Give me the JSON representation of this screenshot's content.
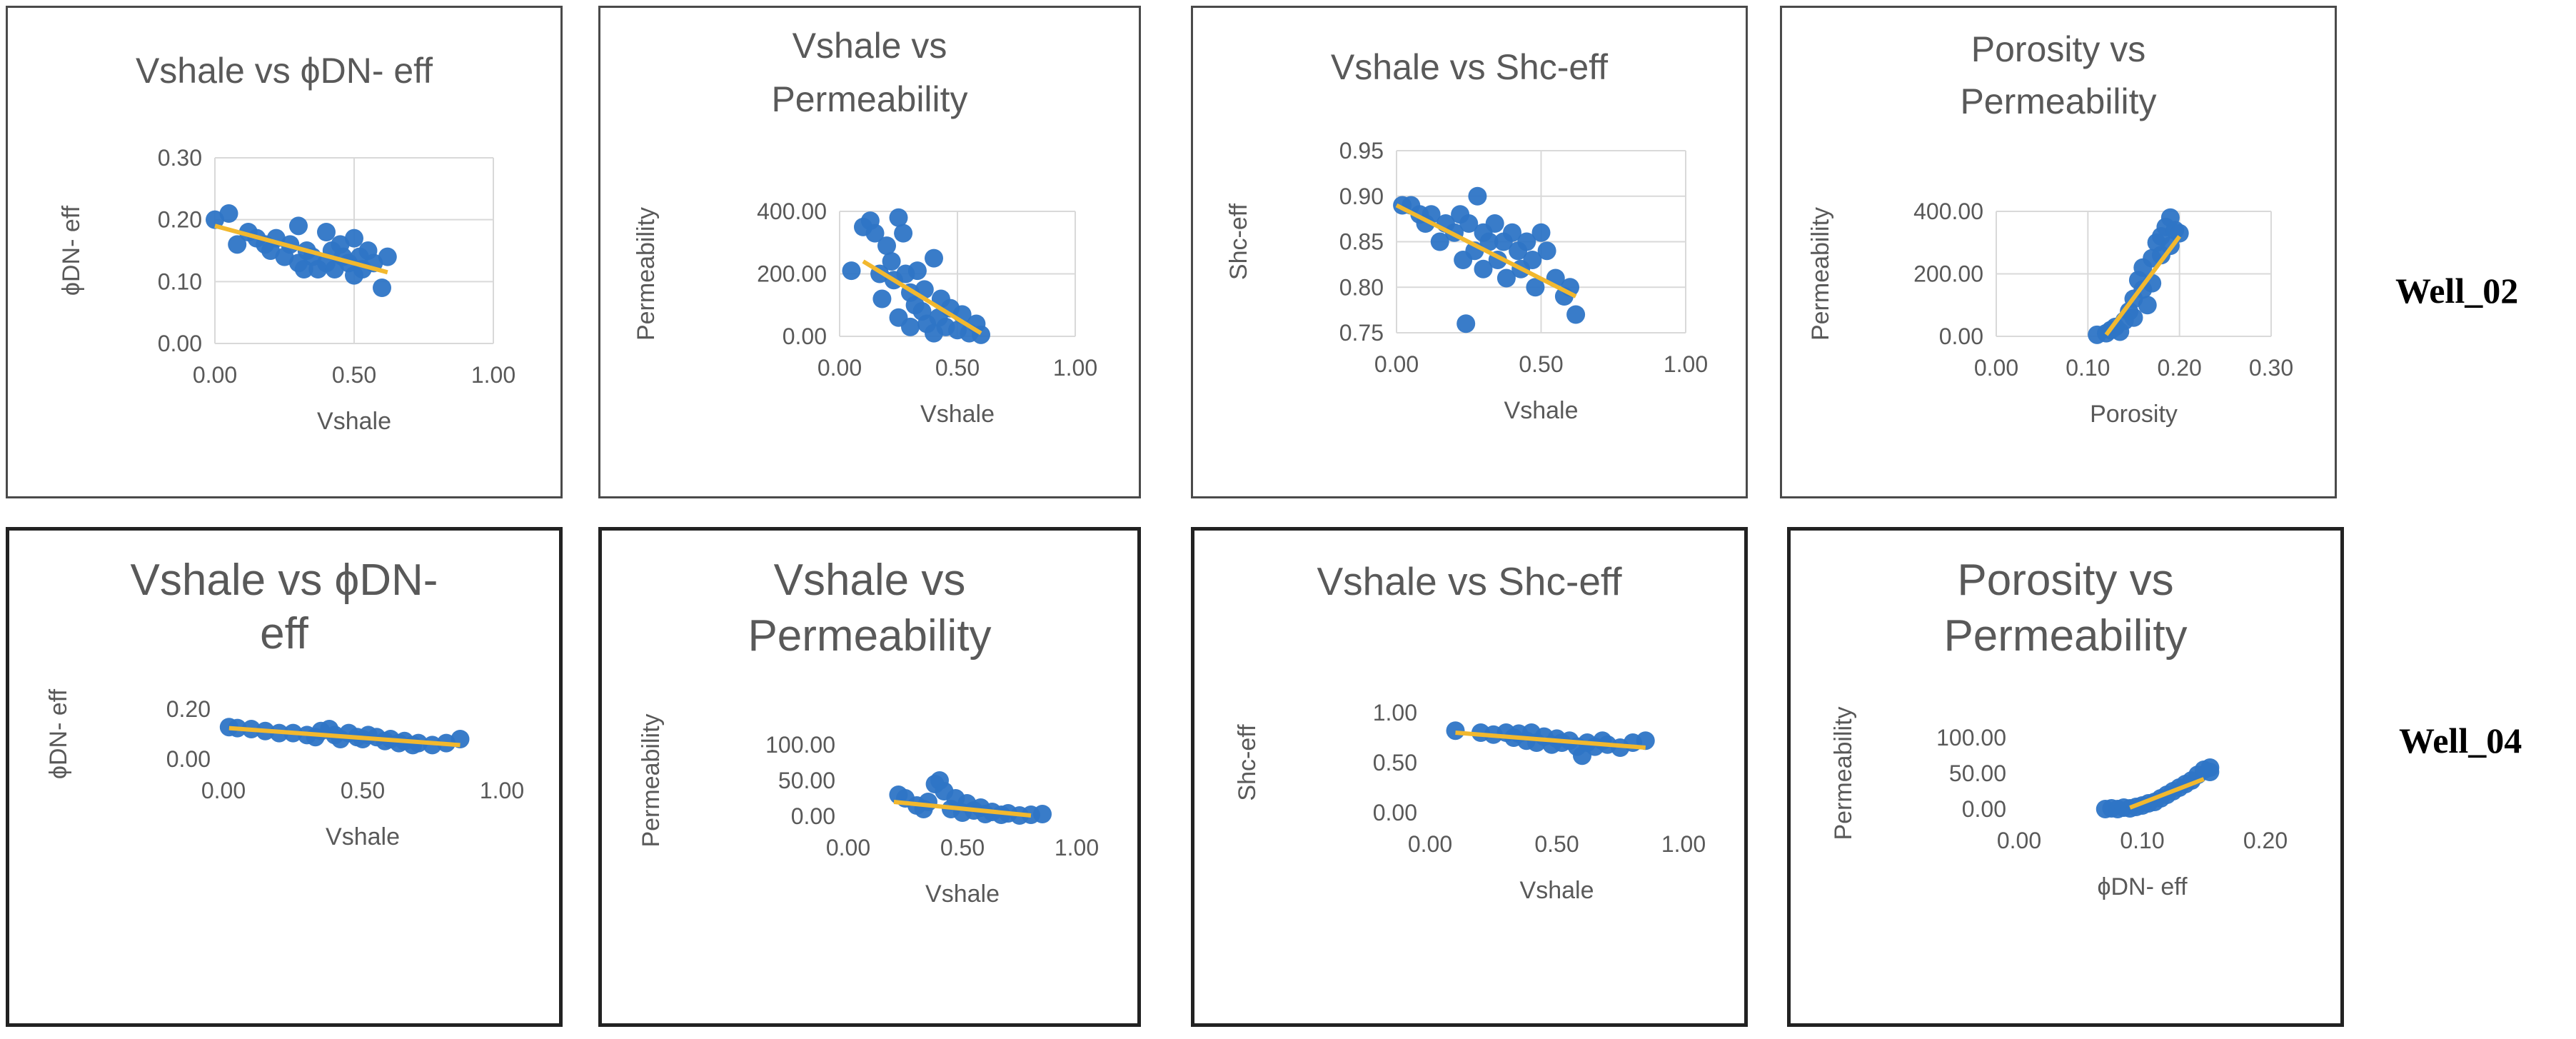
{
  "colors": {
    "point": "#2e75c6",
    "trend": "#f2b82e",
    "grid": "#d9d9d9",
    "text": "#595959",
    "title": "#595959"
  },
  "wells": [
    "Well_02",
    "Well_04"
  ],
  "charts": [
    {
      "title_lines": [
        "Vshale vs ϕDN- eff"
      ],
      "xlabel": "Vshale",
      "ylabel": "ϕDN- eff",
      "xticks": [
        "0.00",
        "0.50",
        "1.00"
      ],
      "yticks": [
        "0.00",
        "0.10",
        "0.20",
        "0.30"
      ]
    },
    {
      "title_lines": [
        "Vshale vs",
        "Permeability"
      ],
      "xlabel": "Vshale",
      "ylabel": "Permeability",
      "xticks": [
        "0.00",
        "0.50",
        "1.00"
      ],
      "yticks": [
        "0.00",
        "200.00",
        "400.00"
      ]
    },
    {
      "title_lines": [
        "Vshale vs Shc-eff"
      ],
      "xlabel": "Vshale",
      "ylabel": "Shc-eff",
      "xticks": [
        "0.00",
        "0.50",
        "1.00"
      ],
      "yticks": [
        "0.75",
        "0.80",
        "0.85",
        "0.90",
        "0.95"
      ]
    },
    {
      "title_lines": [
        "Porosity vs",
        "Permeability"
      ],
      "xlabel": "Porosity",
      "ylabel": "Permeability",
      "xticks": [
        "0.00",
        "0.10",
        "0.20",
        "0.30"
      ],
      "yticks": [
        "0.00",
        "200.00",
        "400.00"
      ]
    },
    {
      "title_lines": [
        "Vshale vs ϕDN-",
        "eff"
      ],
      "xlabel": "Vshale",
      "ylabel": "ϕDN- eff",
      "xticks": [
        "0.00",
        "0.50",
        "1.00"
      ],
      "yticks": [
        "0.00",
        "0.20"
      ]
    },
    {
      "title_lines": [
        "Vshale vs",
        "Permeability"
      ],
      "xlabel": "Vshale",
      "ylabel": "Permeability",
      "xticks": [
        "0.00",
        "0.50",
        "1.00"
      ],
      "yticks": [
        "0.00",
        "50.00",
        "100.00"
      ]
    },
    {
      "title_lines": [
        "Vshale vs Shc-eff"
      ],
      "xlabel": "Vshale",
      "ylabel": "Shc-eff",
      "xticks": [
        "0.00",
        "0.50",
        "1.00"
      ],
      "yticks": [
        "0.00",
        "0.50",
        "1.00"
      ]
    },
    {
      "title_lines": [
        "Porosity vs",
        "Permeability"
      ],
      "xlabel": "ϕDN- eff",
      "ylabel": "Permeability",
      "xticks": [
        "0.00",
        "0.10",
        "0.20"
      ],
      "yticks": [
        "0.00",
        "50.00",
        "100.00"
      ]
    }
  ],
  "chart_data": [
    {
      "type": "scatter",
      "title": "Vshale vs ϕDN- eff",
      "xlabel": "Vshale",
      "ylabel": "ϕDN- eff",
      "xlim": [
        0,
        1
      ],
      "ylim": [
        0,
        0.3
      ],
      "grid": true,
      "trendline": [
        [
          0,
          0.19
        ],
        [
          0.62,
          0.115
        ]
      ],
      "points": [
        [
          0,
          0.2
        ],
        [
          0.05,
          0.21
        ],
        [
          0.08,
          0.16
        ],
        [
          0.12,
          0.18
        ],
        [
          0.15,
          0.17
        ],
        [
          0.18,
          0.16
        ],
        [
          0.2,
          0.15
        ],
        [
          0.22,
          0.17
        ],
        [
          0.25,
          0.14
        ],
        [
          0.27,
          0.16
        ],
        [
          0.3,
          0.19
        ],
        [
          0.3,
          0.13
        ],
        [
          0.32,
          0.12
        ],
        [
          0.33,
          0.15
        ],
        [
          0.35,
          0.14
        ],
        [
          0.37,
          0.12
        ],
        [
          0.4,
          0.18
        ],
        [
          0.4,
          0.13
        ],
        [
          0.42,
          0.15
        ],
        [
          0.43,
          0.12
        ],
        [
          0.45,
          0.16
        ],
        [
          0.46,
          0.14
        ],
        [
          0.48,
          0.13
        ],
        [
          0.5,
          0.17
        ],
        [
          0.5,
          0.11
        ],
        [
          0.52,
          0.14
        ],
        [
          0.53,
          0.12
        ],
        [
          0.55,
          0.15
        ],
        [
          0.57,
          0.13
        ],
        [
          0.6,
          0.09
        ],
        [
          0.62,
          0.14
        ]
      ]
    },
    {
      "type": "scatter",
      "title": "Vshale vs Permeability",
      "xlabel": "Vshale",
      "ylabel": "Permeability",
      "xlim": [
        0,
        1
      ],
      "ylim": [
        0,
        400
      ],
      "grid": true,
      "trendline": [
        [
          0.1,
          240
        ],
        [
          0.6,
          10
        ]
      ],
      "points": [
        [
          0.05,
          210
        ],
        [
          0.1,
          350
        ],
        [
          0.13,
          370
        ],
        [
          0.15,
          330
        ],
        [
          0.17,
          200
        ],
        [
          0.18,
          120
        ],
        [
          0.2,
          290
        ],
        [
          0.22,
          240
        ],
        [
          0.23,
          180
        ],
        [
          0.25,
          380
        ],
        [
          0.25,
          60
        ],
        [
          0.27,
          330
        ],
        [
          0.28,
          200
        ],
        [
          0.3,
          140
        ],
        [
          0.3,
          30
        ],
        [
          0.32,
          100
        ],
        [
          0.33,
          210
        ],
        [
          0.35,
          80
        ],
        [
          0.36,
          150
        ],
        [
          0.37,
          40
        ],
        [
          0.4,
          250
        ],
        [
          0.4,
          10
        ],
        [
          0.42,
          60
        ],
        [
          0.43,
          120
        ],
        [
          0.45,
          30
        ],
        [
          0.47,
          90
        ],
        [
          0.5,
          20
        ],
        [
          0.52,
          70
        ],
        [
          0.55,
          10
        ],
        [
          0.58,
          40
        ],
        [
          0.6,
          5
        ]
      ]
    },
    {
      "type": "scatter",
      "title": "Vshale vs Shc-eff",
      "xlabel": "Vshale",
      "ylabel": "Shc-eff",
      "xlim": [
        0,
        1
      ],
      "ylim": [
        0.75,
        0.95
      ],
      "grid": true,
      "trendline": [
        [
          0,
          0.89
        ],
        [
          0.62,
          0.79
        ]
      ],
      "points": [
        [
          0.02,
          0.89
        ],
        [
          0.05,
          0.89
        ],
        [
          0.08,
          0.88
        ],
        [
          0.1,
          0.87
        ],
        [
          0.12,
          0.88
        ],
        [
          0.15,
          0.85
        ],
        [
          0.17,
          0.87
        ],
        [
          0.2,
          0.86
        ],
        [
          0.22,
          0.88
        ],
        [
          0.23,
          0.83
        ],
        [
          0.24,
          0.76
        ],
        [
          0.25,
          0.87
        ],
        [
          0.27,
          0.84
        ],
        [
          0.28,
          0.9
        ],
        [
          0.3,
          0.86
        ],
        [
          0.3,
          0.82
        ],
        [
          0.32,
          0.85
        ],
        [
          0.34,
          0.87
        ],
        [
          0.35,
          0.83
        ],
        [
          0.37,
          0.85
        ],
        [
          0.38,
          0.81
        ],
        [
          0.4,
          0.86
        ],
        [
          0.42,
          0.84
        ],
        [
          0.43,
          0.82
        ],
        [
          0.45,
          0.85
        ],
        [
          0.47,
          0.83
        ],
        [
          0.48,
          0.8
        ],
        [
          0.5,
          0.86
        ],
        [
          0.52,
          0.84
        ],
        [
          0.55,
          0.81
        ],
        [
          0.58,
          0.79
        ],
        [
          0.6,
          0.8
        ],
        [
          0.62,
          0.77
        ]
      ]
    },
    {
      "type": "scatter",
      "title": "Porosity vs Permeability",
      "xlabel": "Porosity",
      "ylabel": "Permeability",
      "xlim": [
        0,
        0.3
      ],
      "ylim": [
        0,
        400
      ],
      "grid": true,
      "trendline": [
        [
          0.12,
          5
        ],
        [
          0.2,
          320
        ]
      ],
      "points": [
        [
          0.11,
          5
        ],
        [
          0.12,
          10
        ],
        [
          0.125,
          20
        ],
        [
          0.13,
          30
        ],
        [
          0.135,
          15
        ],
        [
          0.14,
          50
        ],
        [
          0.145,
          80
        ],
        [
          0.15,
          60
        ],
        [
          0.15,
          120
        ],
        [
          0.155,
          180
        ],
        [
          0.16,
          150
        ],
        [
          0.16,
          220
        ],
        [
          0.165,
          100
        ],
        [
          0.17,
          250
        ],
        [
          0.17,
          170
        ],
        [
          0.175,
          300
        ],
        [
          0.18,
          320
        ],
        [
          0.18,
          260
        ],
        [
          0.185,
          350
        ],
        [
          0.19,
          380
        ],
        [
          0.19,
          290
        ],
        [
          0.195,
          340
        ],
        [
          0.2,
          330
        ]
      ]
    },
    {
      "type": "scatter",
      "title": "Vshale vs ϕDN- eff",
      "xlabel": "Vshale",
      "ylabel": "ϕDN- eff",
      "xlim": [
        0,
        1
      ],
      "ylim": [
        0,
        0.25
      ],
      "grid": false,
      "trendline": [
        [
          0.02,
          0.155
        ],
        [
          0.85,
          0.07
        ]
      ],
      "points": [
        [
          0.02,
          0.16
        ],
        [
          0.05,
          0.155
        ],
        [
          0.1,
          0.15
        ],
        [
          0.15,
          0.14
        ],
        [
          0.2,
          0.13
        ],
        [
          0.25,
          0.13
        ],
        [
          0.3,
          0.12
        ],
        [
          0.33,
          0.11
        ],
        [
          0.35,
          0.14
        ],
        [
          0.38,
          0.15
        ],
        [
          0.4,
          0.12
        ],
        [
          0.42,
          0.1
        ],
        [
          0.45,
          0.13
        ],
        [
          0.48,
          0.11
        ],
        [
          0.5,
          0.1
        ],
        [
          0.52,
          0.12
        ],
        [
          0.55,
          0.11
        ],
        [
          0.58,
          0.09
        ],
        [
          0.6,
          0.1
        ],
        [
          0.63,
          0.08
        ],
        [
          0.65,
          0.09
        ],
        [
          0.68,
          0.07
        ],
        [
          0.7,
          0.08
        ],
        [
          0.75,
          0.07
        ],
        [
          0.8,
          0.08
        ],
        [
          0.85,
          0.1
        ]
      ]
    },
    {
      "type": "scatter",
      "title": "Vshale vs Permeability",
      "xlabel": "Vshale",
      "ylabel": "Permeability",
      "xlim": [
        0,
        1
      ],
      "ylim": [
        0,
        100
      ],
      "grid": false,
      "trendline": [
        [
          0.2,
          20
        ],
        [
          0.8,
          1
        ]
      ],
      "points": [
        [
          0.22,
          30
        ],
        [
          0.25,
          25
        ],
        [
          0.3,
          15
        ],
        [
          0.33,
          10
        ],
        [
          0.35,
          20
        ],
        [
          0.38,
          45
        ],
        [
          0.4,
          50
        ],
        [
          0.42,
          35
        ],
        [
          0.45,
          10
        ],
        [
          0.47,
          25
        ],
        [
          0.5,
          5
        ],
        [
          0.52,
          18
        ],
        [
          0.55,
          8
        ],
        [
          0.58,
          12
        ],
        [
          0.6,
          3
        ],
        [
          0.63,
          6
        ],
        [
          0.67,
          2
        ],
        [
          0.7,
          4
        ],
        [
          0.75,
          1
        ],
        [
          0.8,
          2
        ],
        [
          0.85,
          3
        ]
      ]
    },
    {
      "type": "scatter",
      "title": "Vshale vs Shc-eff",
      "xlabel": "Vshale",
      "ylabel": "Shc-eff",
      "xlim": [
        0,
        1
      ],
      "ylim": [
        0,
        1
      ],
      "grid": false,
      "trendline": [
        [
          0.1,
          0.8
        ],
        [
          0.85,
          0.65
        ]
      ],
      "points": [
        [
          0.1,
          0.82
        ],
        [
          0.2,
          0.8
        ],
        [
          0.25,
          0.78
        ],
        [
          0.3,
          0.8
        ],
        [
          0.33,
          0.75
        ],
        [
          0.35,
          0.79
        ],
        [
          0.38,
          0.72
        ],
        [
          0.4,
          0.8
        ],
        [
          0.42,
          0.7
        ],
        [
          0.45,
          0.76
        ],
        [
          0.48,
          0.68
        ],
        [
          0.5,
          0.74
        ],
        [
          0.52,
          0.7
        ],
        [
          0.55,
          0.72
        ],
        [
          0.58,
          0.66
        ],
        [
          0.6,
          0.57
        ],
        [
          0.62,
          0.7
        ],
        [
          0.65,
          0.66
        ],
        [
          0.68,
          0.72
        ],
        [
          0.7,
          0.68
        ],
        [
          0.75,
          0.65
        ],
        [
          0.8,
          0.7
        ],
        [
          0.85,
          0.72
        ]
      ]
    },
    {
      "type": "scatter",
      "title": "Porosity vs Permeability",
      "xlabel": "ϕDN- eff",
      "ylabel": "Permeability",
      "xlim": [
        0,
        0.2
      ],
      "ylim": [
        0,
        100
      ],
      "grid": false,
      "trendline": [
        [
          0.09,
          2
        ],
        [
          0.15,
          42
        ]
      ],
      "points": [
        [
          0.07,
          0
        ],
        [
          0.075,
          1
        ],
        [
          0.08,
          0
        ],
        [
          0.085,
          2
        ],
        [
          0.09,
          1
        ],
        [
          0.095,
          3
        ],
        [
          0.1,
          5
        ],
        [
          0.105,
          8
        ],
        [
          0.11,
          10
        ],
        [
          0.115,
          15
        ],
        [
          0.12,
          20
        ],
        [
          0.125,
          25
        ],
        [
          0.13,
          30
        ],
        [
          0.135,
          35
        ],
        [
          0.14,
          40
        ],
        [
          0.145,
          48
        ],
        [
          0.15,
          55
        ],
        [
          0.155,
          58
        ],
        [
          0.155,
          52
        ]
      ]
    }
  ]
}
